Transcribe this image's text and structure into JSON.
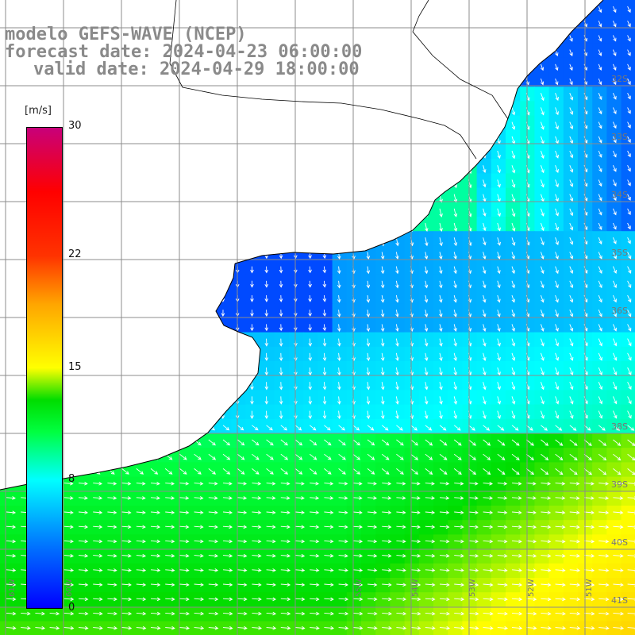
{
  "title": {
    "line1": "modelo GEFS-WAVE (NCEP)",
    "line2": "forecast date: 2024-04-23 06:00:00",
    "line3": "valid date: 2024-04-29 18:00:00"
  },
  "colorbar": {
    "units": "[m/s]",
    "min": 0,
    "max": 30,
    "ticks": [
      {
        "label": "30",
        "value": 30
      },
      {
        "label": "22",
        "value": 22
      },
      {
        "label": "15",
        "value": 15
      },
      {
        "label": "8",
        "value": 8
      },
      {
        "label": "0",
        "value": 0
      }
    ],
    "stops": [
      {
        "value": 0,
        "color": "#0000ff"
      },
      {
        "value": 4,
        "color": "#0077ff"
      },
      {
        "value": 8,
        "color": "#00ffff"
      },
      {
        "value": 11,
        "color": "#00ff40"
      },
      {
        "value": 13,
        "color": "#00dd00"
      },
      {
        "value": 15,
        "color": "#ffff00"
      },
      {
        "value": 19,
        "color": "#ffa500"
      },
      {
        "value": 22,
        "color": "#ff3300"
      },
      {
        "value": 26,
        "color": "#ff0000"
      },
      {
        "value": 30,
        "color": "#c8007a"
      }
    ]
  },
  "map": {
    "lon_labels": [
      "61W",
      "60W",
      "55W",
      "54W",
      "53W",
      "52W",
      "51W"
    ],
    "lat_labels": [
      "32S",
      "33S",
      "34S",
      "35S",
      "36S",
      "38S",
      "39S",
      "40S",
      "41S"
    ],
    "colors": {
      "land": "#ffffff",
      "grid": "#8c8c8c",
      "coast": "#000000",
      "arrow": "#ffffff",
      "title": "#8a8a8a"
    },
    "arrow_icon": "wind-arrow-icon"
  }
}
